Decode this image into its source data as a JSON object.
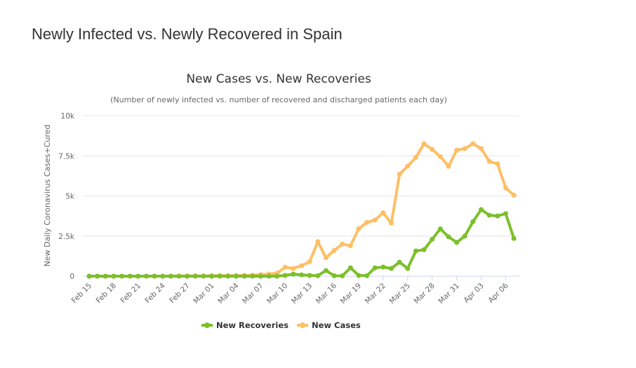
{
  "page_title": "Newly Infected vs. Newly Recovered in Spain",
  "chart_data": {
    "type": "line",
    "title": "New Cases vs. New Recoveries",
    "subtitle": "(Number of newly infected vs. number of recovered and discharged patients each day)",
    "ylabel": "New Daily Coronavirus Cases+Cured",
    "xlabel": "",
    "ylim": [
      0,
      10000
    ],
    "yticks": [
      0,
      2500,
      5000,
      7500,
      10000
    ],
    "ytick_labels": [
      "0",
      "2.5k",
      "5k",
      "7.5k",
      "10k"
    ],
    "grid": true,
    "legend_position": "bottom-center",
    "x": [
      "Feb 15",
      "Feb 16",
      "Feb 17",
      "Feb 18",
      "Feb 19",
      "Feb 20",
      "Feb 21",
      "Feb 22",
      "Feb 23",
      "Feb 24",
      "Feb 25",
      "Feb 26",
      "Feb 27",
      "Feb 28",
      "Feb 29",
      "Mar 01",
      "Mar 02",
      "Mar 03",
      "Mar 04",
      "Mar 05",
      "Mar 06",
      "Mar 07",
      "Mar 08",
      "Mar 09",
      "Mar 10",
      "Mar 11",
      "Mar 12",
      "Mar 13",
      "Mar 14",
      "Mar 15",
      "Mar 16",
      "Mar 17",
      "Mar 18",
      "Mar 19",
      "Mar 20",
      "Mar 21",
      "Mar 22",
      "Mar 23",
      "Mar 24",
      "Mar 25",
      "Mar 26",
      "Mar 27",
      "Mar 28",
      "Mar 29",
      "Mar 30",
      "Mar 31",
      "Apr 01",
      "Apr 02",
      "Apr 03",
      "Apr 04",
      "Apr 05",
      "Apr 06",
      "Apr 07"
    ],
    "xtick_labels": [
      "Feb 15",
      "Feb 18",
      "Feb 21",
      "Feb 24",
      "Feb 27",
      "Mar 01",
      "Mar 04",
      "Mar 07",
      "Mar 10",
      "Mar 13",
      "Mar 16",
      "Mar 19",
      "Mar 22",
      "Mar 25",
      "Mar 28",
      "Mar 31",
      "Apr 03",
      "Apr 06"
    ],
    "series": [
      {
        "name": "New Recoveries",
        "color": "#7cbf2b",
        "values": [
          0,
          0,
          0,
          0,
          0,
          0,
          0,
          0,
          0,
          0,
          0,
          0,
          0,
          0,
          0,
          0,
          0,
          0,
          0,
          0,
          0,
          0,
          0,
          0,
          50,
          130,
          80,
          50,
          30,
          350,
          30,
          20,
          520,
          50,
          30,
          520,
          570,
          480,
          870,
          480,
          1570,
          1650,
          2300,
          2950,
          2450,
          2100,
          2500,
          3400,
          4150,
          3800,
          3750,
          3900,
          2350
        ]
      },
      {
        "name": "New Cases",
        "color": "#fdbf65",
        "values": [
          0,
          0,
          0,
          0,
          0,
          0,
          0,
          0,
          0,
          0,
          5,
          10,
          10,
          20,
          10,
          30,
          40,
          30,
          40,
          50,
          60,
          100,
          130,
          180,
          560,
          480,
          650,
          900,
          2150,
          1150,
          1600,
          2000,
          1900,
          2950,
          3350,
          3500,
          3950,
          3300,
          6350,
          6850,
          7400,
          8250,
          7900,
          7450,
          6850,
          7850,
          7950,
          8250,
          7950,
          7150,
          7000,
          5500,
          5050
        ]
      }
    ]
  }
}
